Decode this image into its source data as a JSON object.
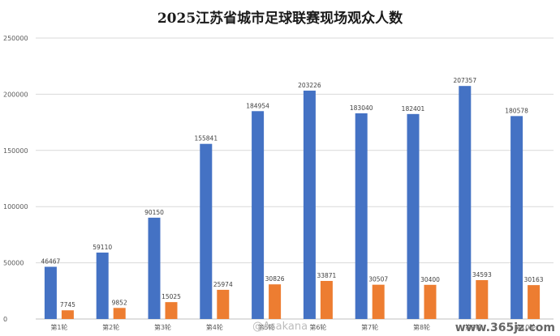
{
  "chart_data": {
    "type": "bar",
    "title": "2025江苏省城市足球联赛现场观众人数",
    "categories": [
      "第1轮",
      "第2轮",
      "第3轮",
      "第4轮",
      "第5轮",
      "第6轮",
      "第7轮",
      "第8轮",
      "第9轮",
      "第10轮"
    ],
    "series": [
      {
        "color": "#4472C4",
        "values": [
          46467,
          59110,
          90150,
          155841,
          184954,
          203226,
          183040,
          182401,
          207357,
          180578
        ]
      },
      {
        "color": "#ED7D31",
        "values": [
          7745,
          9852,
          15025,
          25974,
          30826,
          33871,
          30507,
          30400,
          34593,
          30163
        ]
      }
    ],
    "ylim": [
      0,
      250000
    ],
    "yticks": [
      0,
      50000,
      100000,
      150000,
      200000,
      250000
    ],
    "ytick_labels": [
      "0",
      "50000",
      "100000",
      "150000",
      "200000",
      "250000"
    ],
    "grid": true,
    "xlabel": "",
    "ylabel": ""
  },
  "watermark": {
    "text": "@Asakana",
    "site": "www.365jz.com"
  }
}
